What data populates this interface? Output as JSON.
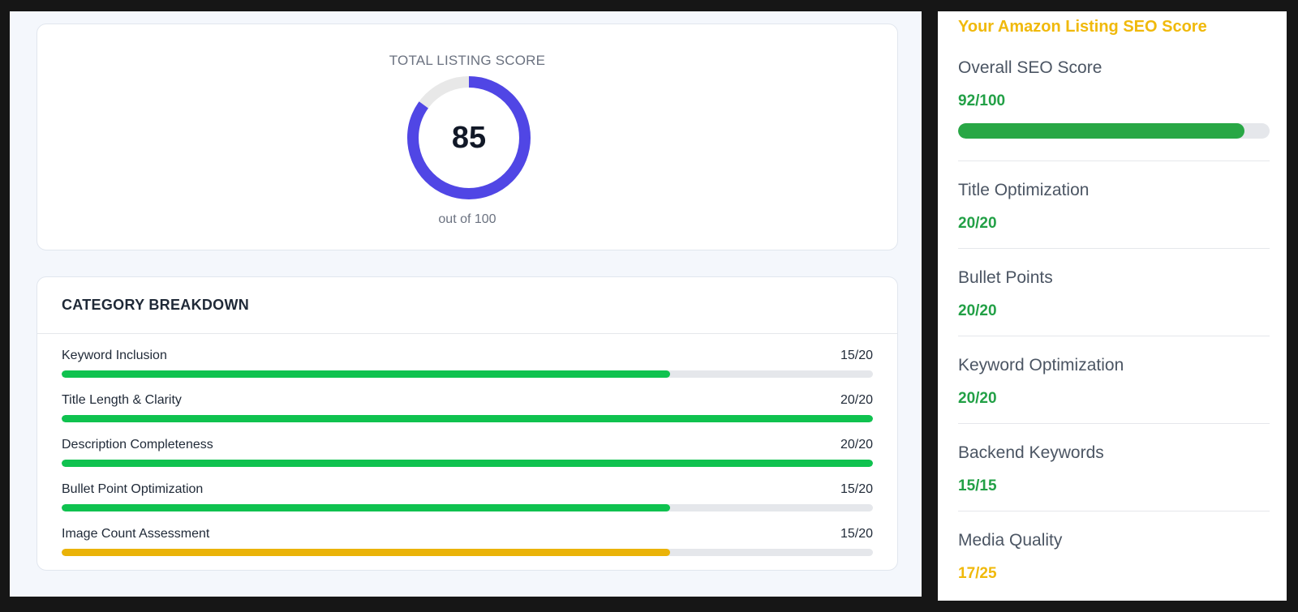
{
  "total_score": {
    "label": "TOTAL LISTING SCORE",
    "value": "85",
    "max_label": "out of 100",
    "percent": 85,
    "ring_color": "#5046e5",
    "track_color": "#e8e8e8"
  },
  "breakdown": {
    "title": "CATEGORY BREAKDOWN",
    "rows": [
      {
        "label": "Keyword Inclusion",
        "value": "15/20",
        "fraction": 0.75,
        "color": "#0fc24f"
      },
      {
        "label": "Title Length & Clarity",
        "value": "20/20",
        "fraction": 1.0,
        "color": "#0fc24f"
      },
      {
        "label": "Description Completeness",
        "value": "20/20",
        "fraction": 1.0,
        "color": "#0fc24f"
      },
      {
        "label": "Bullet Point Optimization",
        "value": "15/20",
        "fraction": 0.75,
        "color": "#0fc24f"
      },
      {
        "label": "Image Count Assessment",
        "value": "15/20",
        "fraction": 0.75,
        "color": "#eab308"
      }
    ]
  },
  "seo_panel": {
    "title": "Your Amazon Listing SEO Score",
    "overall": {
      "label": "Overall SEO Score",
      "value": "92/100",
      "fraction": 0.92
    },
    "metrics": [
      {
        "label": "Title Optimization",
        "value": "20/20",
        "color": "#22a046"
      },
      {
        "label": "Bullet Points",
        "value": "20/20",
        "color": "#22a046"
      },
      {
        "label": "Keyword Optimization",
        "value": "20/20",
        "color": "#22a046"
      },
      {
        "label": "Backend Keywords",
        "value": "15/15",
        "color": "#22a046"
      },
      {
        "label": "Media Quality",
        "value": "17/25",
        "color": "#f0b90b"
      }
    ]
  }
}
